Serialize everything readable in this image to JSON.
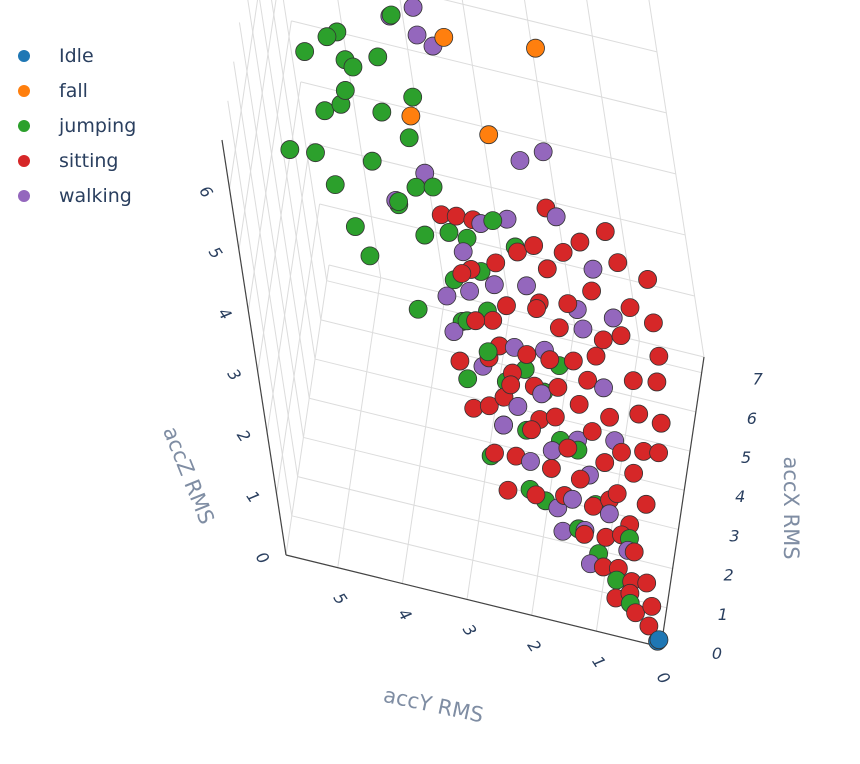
{
  "chart_data": {
    "type": "scatter",
    "dimensions": 3,
    "axes": {
      "x": {
        "title": "accX RMS",
        "ticks": [
          0,
          1,
          2,
          3,
          4,
          5,
          6,
          7
        ],
        "range": [
          0,
          7.4
        ]
      },
      "y": {
        "title": "accY RMS",
        "ticks": [
          0,
          1,
          2,
          3,
          4,
          5
        ],
        "range": [
          0,
          5.8
        ]
      },
      "z": {
        "title": "accZ RMS",
        "ticks": [
          0,
          1,
          2,
          3,
          4,
          5,
          6
        ],
        "range": [
          0,
          6.8
        ]
      }
    },
    "legend_position": "top-left",
    "grid": true,
    "series": [
      {
        "name": "Idle",
        "color": "#1f77b4",
        "points": [
          [
            0.05,
            0.05,
            0.05
          ],
          [
            0.08,
            0.03,
            0.06
          ]
        ]
      },
      {
        "name": "fall",
        "color": "#ff7f0e",
        "points": [
          [
            4.3,
            2.8,
            6.5
          ],
          [
            2.6,
            3.2,
            6.2
          ],
          [
            5.6,
            1.6,
            5.8
          ],
          [
            4.2,
            2.3,
            5.1
          ]
        ]
      },
      {
        "name": "jumping",
        "color": "#2ca02c",
        "points": [
          [
            3.9,
            4.6,
            6.3
          ],
          [
            3.4,
            4.9,
            6.3
          ],
          [
            3.6,
            4.2,
            6.1
          ],
          [
            5.4,
            3.8,
            5.9
          ],
          [
            6.4,
            4.3,
            6.0
          ],
          [
            4.8,
            4.6,
            5.8
          ],
          [
            3.7,
            4.4,
            5.6
          ],
          [
            4.6,
            4.5,
            5.5
          ],
          [
            3.8,
            4.8,
            5.1
          ],
          [
            4.2,
            4.6,
            5.0
          ],
          [
            5.3,
            4.1,
            5.2
          ],
          [
            3.0,
            4.9,
            4.9
          ],
          [
            4.4,
            4.0,
            4.9
          ],
          [
            5.1,
            3.6,
            4.8
          ],
          [
            3.2,
            4.7,
            4.3
          ],
          [
            3.5,
            5.4,
            4.5
          ],
          [
            4.0,
            4.2,
            4.3
          ],
          [
            4.8,
            3.7,
            4.3
          ],
          [
            3.6,
            3.8,
            4.0
          ],
          [
            3.3,
            4.5,
            3.6
          ],
          [
            4.2,
            3.6,
            3.9
          ],
          [
            3.1,
            4.3,
            3.3
          ],
          [
            4.6,
            3.4,
            3.7
          ],
          [
            3.8,
            3.5,
            3.4
          ],
          [
            4.3,
            3.2,
            3.2
          ],
          [
            2.8,
            3.6,
            2.8
          ],
          [
            3.6,
            3.1,
            2.9
          ],
          [
            5.0,
            2.6,
            3.1
          ],
          [
            4.7,
            3.0,
            2.9
          ],
          [
            3.2,
            3.0,
            2.5
          ],
          [
            2.9,
            2.6,
            2.3
          ],
          [
            2.4,
            2.9,
            2.1
          ],
          [
            3.0,
            2.4,
            1.8
          ],
          [
            5.5,
            2.4,
            2.4
          ],
          [
            3.7,
            2.2,
            1.6
          ],
          [
            2.2,
            2.4,
            1.6
          ],
          [
            1.8,
            2.6,
            1.3
          ],
          [
            2.6,
            1.6,
            1.3
          ],
          [
            4.0,
            1.7,
            1.6
          ],
          [
            1.6,
            1.8,
            0.9
          ],
          [
            2.9,
            1.4,
            1.0
          ],
          [
            1.4,
            1.3,
            0.7
          ],
          [
            2.1,
            1.1,
            0.7
          ],
          [
            1.2,
            1.0,
            0.5
          ],
          [
            0.8,
            0.7,
            0.4
          ],
          [
            1.9,
            0.6,
            0.4
          ],
          [
            0.6,
            0.5,
            0.2
          ],
          [
            1.5,
            2.0,
            1.1
          ],
          [
            3.4,
            1.9,
            1.5
          ],
          [
            2.5,
            2.1,
            1.4
          ],
          [
            4.4,
            2.8,
            2.6
          ],
          [
            3.9,
            2.7,
            2.3
          ],
          [
            3.1,
            2.9,
            2.6
          ],
          [
            4.1,
            3.9,
            3.6
          ]
        ]
      },
      {
        "name": "sitting",
        "color": "#d62728",
        "points": [
          [
            4.2,
            1.5,
            1.6
          ],
          [
            3.8,
            1.8,
            1.8
          ],
          [
            4.6,
            1.2,
            1.5
          ],
          [
            5.0,
            1.6,
            2.0
          ],
          [
            3.5,
            2.1,
            2.0
          ],
          [
            4.0,
            2.4,
            2.4
          ],
          [
            4.4,
            2.0,
            2.2
          ],
          [
            3.2,
            2.0,
            1.7
          ],
          [
            4.9,
            1.1,
            1.6
          ],
          [
            3.6,
            1.4,
            1.3
          ],
          [
            3.0,
            1.7,
            1.4
          ],
          [
            2.8,
            2.3,
            1.9
          ],
          [
            3.9,
            1.0,
            1.0
          ],
          [
            3.3,
            1.2,
            1.1
          ],
          [
            2.6,
            1.5,
            1.2
          ],
          [
            2.4,
            2.0,
            1.5
          ],
          [
            2.9,
            1.0,
            0.9
          ],
          [
            2.2,
            1.3,
            1.0
          ],
          [
            2.0,
            1.7,
            1.2
          ],
          [
            2.5,
            0.8,
            0.7
          ],
          [
            1.9,
            1.1,
            0.8
          ],
          [
            1.7,
            1.5,
            1.0
          ],
          [
            1.5,
            0.9,
            0.6
          ],
          [
            2.1,
            0.6,
            0.5
          ],
          [
            1.3,
            1.2,
            0.7
          ],
          [
            1.1,
            0.7,
            0.4
          ],
          [
            1.6,
            0.5,
            0.4
          ],
          [
            0.9,
            0.9,
            0.5
          ],
          [
            0.7,
            0.5,
            0.3
          ],
          [
            1.2,
            0.3,
            0.2
          ],
          [
            0.5,
            0.7,
            0.3
          ],
          [
            0.4,
            0.4,
            0.2
          ],
          [
            0.8,
            0.2,
            0.1
          ],
          [
            0.3,
            0.2,
            0.1
          ],
          [
            5.3,
            1.9,
            2.3
          ],
          [
            5.1,
            2.3,
            2.6
          ],
          [
            4.7,
            2.6,
            2.6
          ],
          [
            4.5,
            1.7,
            1.9
          ],
          [
            3.7,
            2.6,
            2.3
          ],
          [
            3.4,
            2.5,
            2.1
          ],
          [
            6.6,
            1.0,
            1.8
          ],
          [
            6.0,
            0.8,
            1.5
          ],
          [
            5.6,
            1.3,
            1.9
          ],
          [
            5.8,
            1.7,
            2.3
          ],
          [
            6.3,
            1.5,
            2.2
          ],
          [
            5.4,
            0.9,
            1.4
          ],
          [
            4.8,
            0.7,
            1.1
          ],
          [
            4.3,
            0.6,
            0.9
          ],
          [
            3.7,
            0.5,
            0.7
          ],
          [
            3.1,
            0.6,
            0.7
          ],
          [
            2.7,
            0.4,
            0.5
          ],
          [
            4.1,
            2.9,
            2.8
          ],
          [
            3.3,
            2.8,
            2.5
          ],
          [
            2.9,
            2.6,
            2.2
          ],
          [
            4.6,
            3.1,
            3.3
          ],
          [
            4.4,
            3.3,
            3.4
          ],
          [
            2.6,
            2.4,
            1.8
          ],
          [
            2.3,
            2.6,
            1.8
          ],
          [
            1.8,
            2.2,
            1.4
          ],
          [
            1.4,
            1.9,
            1.1
          ],
          [
            6.8,
            0.6,
            1.5
          ],
          [
            7.0,
            1.2,
            2.0
          ],
          [
            6.5,
            2.0,
            2.5
          ],
          [
            6.2,
            0.5,
            1.2
          ],
          [
            5.7,
            0.4,
            1.0
          ],
          [
            5.2,
            0.4,
            0.9
          ],
          [
            4.5,
            0.3,
            0.7
          ],
          [
            3.9,
            0.3,
            0.6
          ],
          [
            3.4,
            0.8,
            0.8
          ],
          [
            2.3,
            0.9,
            0.7
          ],
          [
            1.8,
            0.7,
            0.5
          ],
          [
            1.0,
            0.5,
            0.3
          ],
          [
            2.7,
            1.9,
            1.5
          ],
          [
            3.1,
            2.3,
            1.9
          ],
          [
            3.6,
            1.7,
            1.5
          ],
          [
            4.1,
            1.3,
            1.4
          ],
          [
            4.7,
            2.0,
            2.1
          ],
          [
            5.5,
            2.1,
            2.5
          ],
          [
            3.8,
            3.0,
            2.9
          ],
          [
            4.9,
            2.9,
            3.1
          ],
          [
            2.5,
            3.0,
            2.3
          ],
          [
            2.0,
            2.8,
            1.9
          ],
          [
            1.6,
            2.5,
            1.5
          ],
          [
            1.2,
            2.3,
            1.2
          ]
        ]
      },
      {
        "name": "walking",
        "color": "#9467bd",
        "points": [
          [
            5.8,
            3.9,
            5.6
          ],
          [
            6.3,
            3.6,
            5.5
          ],
          [
            5.9,
            3.3,
            5.2
          ],
          [
            6.8,
            3.7,
            4.7
          ],
          [
            3.9,
            3.9,
            3.8
          ],
          [
            4.6,
            3.5,
            3.9
          ],
          [
            6.5,
            2.3,
            3.2
          ],
          [
            7.0,
            2.0,
            3.1
          ],
          [
            3.7,
            2.9,
            2.7
          ],
          [
            4.3,
            2.6,
            2.5
          ],
          [
            3.6,
            2.3,
            2.0
          ],
          [
            4.9,
            2.2,
            2.2
          ],
          [
            5.7,
            2.5,
            2.7
          ],
          [
            2.8,
            2.7,
            2.1
          ],
          [
            3.2,
            1.9,
            1.6
          ],
          [
            4.0,
            1.9,
            1.8
          ],
          [
            2.6,
            2.2,
            1.7
          ],
          [
            5.2,
            1.5,
            1.8
          ],
          [
            2.3,
            1.7,
            1.3
          ],
          [
            3.0,
            1.4,
            1.1
          ],
          [
            1.9,
            2.0,
            1.3
          ],
          [
            4.3,
            1.1,
            1.2
          ],
          [
            2.5,
            1.2,
            0.9
          ],
          [
            1.8,
            1.4,
            0.9
          ],
          [
            3.5,
            0.9,
            0.9
          ],
          [
            1.5,
            1.6,
            0.9
          ],
          [
            6.0,
            1.3,
            2.0
          ],
          [
            5.5,
            1.0,
            1.6
          ],
          [
            4.9,
            1.4,
            1.7
          ],
          [
            3.3,
            3.2,
            2.8
          ],
          [
            2.2,
            2.4,
            1.6
          ],
          [
            2.9,
            3.1,
            2.5
          ],
          [
            4.2,
            3.0,
            3.0
          ],
          [
            5.0,
            2.8,
            3.0
          ],
          [
            6.2,
            1.8,
            2.6
          ],
          [
            1.4,
            1.2,
            0.7
          ],
          [
            2.1,
            0.9,
            0.6
          ],
          [
            1.1,
            1.5,
            0.8
          ],
          [
            0.9,
            1.1,
            0.5
          ],
          [
            1.6,
            0.6,
            0.4
          ]
        ]
      }
    ]
  }
}
